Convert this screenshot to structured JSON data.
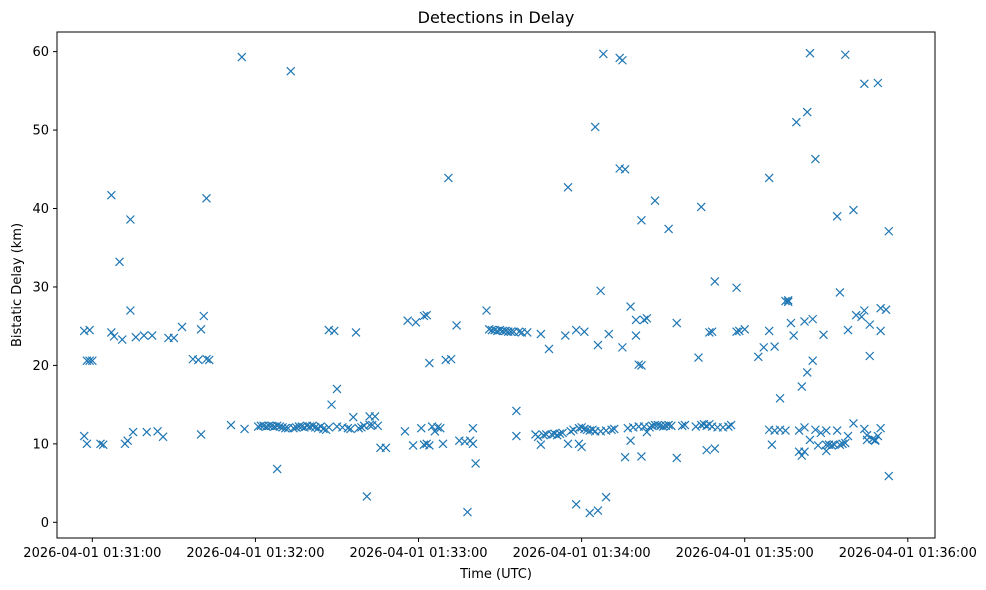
{
  "chart_data": {
    "type": "scatter",
    "title": "Detections in Delay",
    "xlabel": "Time (UTC)",
    "ylabel": "Bistatic Delay (km)",
    "marker": "x",
    "color": "#1f77b4",
    "grid": false,
    "xlim": [
      "2026-04-01 01:30:47",
      "2026-04-01 01:36:10"
    ],
    "ylim": [
      -2,
      62.5
    ],
    "x_ticks": [
      "2026-04-01 01:31:00",
      "2026-04-01 01:32:00",
      "2026-04-01 01:33:00",
      "2026-04-01 01:34:00",
      "2026-04-01 01:35:00",
      "2026-04-01 01:36:00"
    ],
    "y_ticks": [
      "0",
      "10",
      "20",
      "30",
      "40",
      "50",
      "60"
    ],
    "points": [
      [
        "01:30:57",
        24.4
      ],
      [
        "01:30:57",
        11.0
      ],
      [
        "01:30:58",
        20.6
      ],
      [
        "01:30:58",
        10.0
      ],
      [
        "01:30:59",
        24.5
      ],
      [
        "01:30:59",
        20.6
      ],
      [
        "01:31:00",
        20.6
      ],
      [
        "01:31:03",
        10.0
      ],
      [
        "01:31:04",
        9.9
      ],
      [
        "01:31:07",
        41.7
      ],
      [
        "01:31:07",
        24.2
      ],
      [
        "01:31:08",
        23.7
      ],
      [
        "01:31:10",
        33.2
      ],
      [
        "01:31:11",
        23.3
      ],
      [
        "01:31:12",
        10.0
      ],
      [
        "01:31:13",
        10.4
      ],
      [
        "01:31:14",
        27.0
      ],
      [
        "01:31:14",
        38.6
      ],
      [
        "01:31:15",
        11.5
      ],
      [
        "01:31:16",
        23.6
      ],
      [
        "01:31:19",
        23.8
      ],
      [
        "01:31:20",
        11.5
      ],
      [
        "01:31:22",
        23.8
      ],
      [
        "01:31:24",
        11.6
      ],
      [
        "01:31:26",
        10.9
      ],
      [
        "01:31:28",
        23.5
      ],
      [
        "01:31:30",
        23.5
      ],
      [
        "01:31:33",
        24.9
      ],
      [
        "01:31:37",
        20.8
      ],
      [
        "01:31:39",
        20.7
      ],
      [
        "01:31:40",
        24.6
      ],
      [
        "01:31:40",
        11.2
      ],
      [
        "01:31:41",
        26.3
      ],
      [
        "01:31:42",
        20.8
      ],
      [
        "01:31:42",
        41.3
      ],
      [
        "01:31:43",
        20.7
      ],
      [
        "01:31:51",
        12.4
      ],
      [
        "01:31:55",
        59.3
      ],
      [
        "01:31:56",
        11.9
      ],
      [
        "01:32:01",
        12.2
      ],
      [
        "01:32:02",
        12.3
      ],
      [
        "01:32:03",
        12.3
      ],
      [
        "01:32:04",
        12.2
      ],
      [
        "01:32:05",
        12.3
      ],
      [
        "01:32:06",
        12.3
      ],
      [
        "01:32:07",
        12.2
      ],
      [
        "01:32:08",
        12.3
      ],
      [
        "01:32:08",
        6.8
      ],
      [
        "01:32:09",
        12.2
      ],
      [
        "01:32:10",
        12.1
      ],
      [
        "01:32:11",
        12.0
      ],
      [
        "01:32:12",
        12.0
      ],
      [
        "01:32:13",
        57.5
      ],
      [
        "01:32:14",
        12.0
      ],
      [
        "01:32:15",
        12.1
      ],
      [
        "01:32:16",
        12.2
      ],
      [
        "01:32:17",
        12.2
      ],
      [
        "01:32:18",
        12.1
      ],
      [
        "01:32:19",
        12.3
      ],
      [
        "01:32:20",
        12.2
      ],
      [
        "01:32:21",
        12.3
      ],
      [
        "01:32:22",
        12.1
      ],
      [
        "01:32:23",
        12.0
      ],
      [
        "01:32:24",
        12.2
      ],
      [
        "01:32:25",
        11.9
      ],
      [
        "01:32:26",
        11.8
      ],
      [
        "01:32:27",
        24.5
      ],
      [
        "01:32:27",
        12.1
      ],
      [
        "01:32:28",
        15.0
      ],
      [
        "01:32:29",
        24.4
      ],
      [
        "01:32:30",
        17.0
      ],
      [
        "01:32:30",
        12.2
      ],
      [
        "01:32:32",
        12.1
      ],
      [
        "01:32:34",
        12.0
      ],
      [
        "01:32:35",
        11.9
      ],
      [
        "01:32:36",
        13.4
      ],
      [
        "01:32:37",
        24.2
      ],
      [
        "01:32:38",
        12.0
      ],
      [
        "01:32:39",
        12.1
      ],
      [
        "01:32:40",
        12.3
      ],
      [
        "01:32:41",
        3.3
      ],
      [
        "01:32:42",
        13.5
      ],
      [
        "01:32:42",
        12.4
      ],
      [
        "01:32:43",
        12.4
      ],
      [
        "01:32:44",
        13.5
      ],
      [
        "01:32:45",
        12.3
      ],
      [
        "01:32:46",
        9.5
      ],
      [
        "01:32:48",
        9.5
      ],
      [
        "01:32:55",
        11.6
      ],
      [
        "01:32:56",
        25.7
      ],
      [
        "01:32:58",
        9.8
      ],
      [
        "01:32:59",
        25.5
      ],
      [
        "01:33:01",
        12.0
      ],
      [
        "01:33:02",
        26.3
      ],
      [
        "01:33:02",
        9.9
      ],
      [
        "01:33:03",
        26.4
      ],
      [
        "01:33:03",
        10.0
      ],
      [
        "01:33:04",
        20.3
      ],
      [
        "01:33:04",
        9.8
      ],
      [
        "01:33:05",
        12.2
      ],
      [
        "01:33:06",
        11.6
      ],
      [
        "01:33:07",
        12.1
      ],
      [
        "01:33:08",
        12.0
      ],
      [
        "01:33:09",
        10.0
      ],
      [
        "01:33:10",
        20.7
      ],
      [
        "01:33:11",
        43.9
      ],
      [
        "01:33:12",
        20.8
      ],
      [
        "01:33:14",
        25.1
      ],
      [
        "01:33:15",
        10.4
      ],
      [
        "01:33:17",
        10.3
      ],
      [
        "01:33:18",
        1.3
      ],
      [
        "01:33:19",
        10.4
      ],
      [
        "01:33:20",
        12.0
      ],
      [
        "01:33:20",
        10.0
      ],
      [
        "01:33:21",
        7.5
      ],
      [
        "01:33:25",
        27.0
      ],
      [
        "01:33:26",
        24.6
      ],
      [
        "01:33:27",
        24.5
      ],
      [
        "01:33:28",
        24.5
      ],
      [
        "01:33:29",
        24.4
      ],
      [
        "01:33:30",
        24.5
      ],
      [
        "01:33:31",
        24.4
      ],
      [
        "01:33:32",
        24.4
      ],
      [
        "01:33:33",
        24.3
      ],
      [
        "01:33:34",
        24.3
      ],
      [
        "01:33:35",
        24.3
      ],
      [
        "01:33:36",
        11.0
      ],
      [
        "01:33:36",
        14.2
      ],
      [
        "01:33:37",
        24.3
      ],
      [
        "01:33:38",
        24.2
      ],
      [
        "01:33:40",
        24.2
      ],
      [
        "01:33:43",
        11.2
      ],
      [
        "01:33:44",
        10.9
      ],
      [
        "01:33:45",
        24.0
      ],
      [
        "01:33:45",
        9.9
      ],
      [
        "01:33:46",
        11.1
      ],
      [
        "01:33:47",
        11.2
      ],
      [
        "01:33:48",
        22.1
      ],
      [
        "01:33:49",
        11.2
      ],
      [
        "01:33:50",
        11.3
      ],
      [
        "01:33:51",
        11.1
      ],
      [
        "01:33:52",
        11.3
      ],
      [
        "01:33:53",
        11.4
      ],
      [
        "01:33:54",
        23.8
      ],
      [
        "01:33:55",
        42.7
      ],
      [
        "01:33:55",
        10.0
      ],
      [
        "01:33:56",
        11.6
      ],
      [
        "01:33:57",
        11.8
      ],
      [
        "01:33:58",
        24.5
      ],
      [
        "01:33:58",
        2.3
      ],
      [
        "01:33:59",
        12.0
      ],
      [
        "01:33:59",
        10.0
      ],
      [
        "01:34:00",
        12.1
      ],
      [
        "01:34:00",
        9.6
      ],
      [
        "01:34:01",
        24.3
      ],
      [
        "01:34:01",
        11.9
      ],
      [
        "01:34:02",
        11.8
      ],
      [
        "01:34:03",
        11.7
      ],
      [
        "01:34:03",
        1.2
      ],
      [
        "01:34:04",
        11.8
      ],
      [
        "01:34:05",
        11.6
      ],
      [
        "01:34:05",
        50.4
      ],
      [
        "01:34:06",
        1.5
      ],
      [
        "01:34:06",
        22.6
      ],
      [
        "01:34:07",
        29.5
      ],
      [
        "01:34:07",
        11.6
      ],
      [
        "01:34:08",
        59.7
      ],
      [
        "01:34:09",
        11.7
      ],
      [
        "01:34:09",
        3.2
      ],
      [
        "01:34:10",
        24.0
      ],
      [
        "01:34:11",
        11.8
      ],
      [
        "01:34:12",
        11.9
      ],
      [
        "01:34:14",
        59.2
      ],
      [
        "01:34:14",
        45.1
      ],
      [
        "01:34:15",
        22.3
      ],
      [
        "01:34:15",
        58.9
      ],
      [
        "01:34:16",
        8.3
      ],
      [
        "01:34:16",
        45.0
      ],
      [
        "01:34:17",
        12.0
      ],
      [
        "01:34:18",
        27.5
      ],
      [
        "01:34:18",
        10.4
      ],
      [
        "01:34:19",
        12.1
      ],
      [
        "01:34:20",
        23.8
      ],
      [
        "01:34:20",
        25.8
      ],
      [
        "01:34:21",
        12.2
      ],
      [
        "01:34:21",
        20.1
      ],
      [
        "01:34:22",
        20.0
      ],
      [
        "01:34:22",
        8.4
      ],
      [
        "01:34:22",
        38.5
      ],
      [
        "01:34:23",
        25.8
      ],
      [
        "01:34:23",
        12.2
      ],
      [
        "01:34:24",
        26.0
      ],
      [
        "01:34:24",
        11.5
      ],
      [
        "01:34:25",
        12.1
      ],
      [
        "01:34:26",
        12.3
      ],
      [
        "01:34:27",
        41.0
      ],
      [
        "01:34:27",
        12.4
      ],
      [
        "01:34:28",
        12.4
      ],
      [
        "01:34:29",
        12.3
      ],
      [
        "01:34:30",
        12.2
      ],
      [
        "01:34:31",
        12.3
      ],
      [
        "01:34:32",
        37.4
      ],
      [
        "01:34:32",
        12.4
      ],
      [
        "01:34:33",
        12.3
      ],
      [
        "01:34:35",
        25.4
      ],
      [
        "01:34:35",
        8.2
      ],
      [
        "01:34:37",
        12.3
      ],
      [
        "01:34:38",
        12.4
      ],
      [
        "01:34:42",
        12.2
      ],
      [
        "01:34:43",
        21.0
      ],
      [
        "01:34:44",
        40.2
      ],
      [
        "01:34:44",
        12.4
      ],
      [
        "01:34:45",
        12.5
      ],
      [
        "01:34:46",
        12.3
      ],
      [
        "01:34:46",
        9.2
      ],
      [
        "01:34:47",
        24.2
      ],
      [
        "01:34:47",
        12.5
      ],
      [
        "01:34:48",
        24.3
      ],
      [
        "01:34:48",
        12.2
      ],
      [
        "01:34:49",
        30.7
      ],
      [
        "01:34:49",
        9.4
      ],
      [
        "01:34:50",
        12.1
      ],
      [
        "01:34:52",
        12.1
      ],
      [
        "01:34:54",
        12.2
      ],
      [
        "01:34:55",
        12.4
      ],
      [
        "01:34:57",
        24.3
      ],
      [
        "01:34:57",
        29.9
      ],
      [
        "01:34:58",
        24.4
      ],
      [
        "01:35:00",
        24.6
      ],
      [
        "01:35:05",
        21.1
      ],
      [
        "01:35:07",
        22.3
      ],
      [
        "01:35:09",
        43.9
      ],
      [
        "01:35:09",
        24.4
      ],
      [
        "01:35:09",
        11.8
      ],
      [
        "01:35:10",
        9.9
      ],
      [
        "01:35:11",
        22.4
      ],
      [
        "01:35:11",
        11.7
      ],
      [
        "01:35:13",
        15.8
      ],
      [
        "01:35:13",
        11.8
      ],
      [
        "01:35:15",
        28.2
      ],
      [
        "01:35:15",
        11.7
      ],
      [
        "01:35:16",
        28.3
      ],
      [
        "01:35:16",
        28.1
      ],
      [
        "01:35:17",
        25.4
      ],
      [
        "01:35:18",
        23.8
      ],
      [
        "01:35:19",
        51.0
      ],
      [
        "01:35:20",
        9.0
      ],
      [
        "01:35:20",
        11.7
      ],
      [
        "01:35:21",
        8.5
      ],
      [
        "01:35:21",
        17.3
      ],
      [
        "01:35:22",
        25.6
      ],
      [
        "01:35:22",
        12.1
      ],
      [
        "01:35:22",
        9.0
      ],
      [
        "01:35:23",
        19.1
      ],
      [
        "01:35:23",
        52.3
      ],
      [
        "01:35:24",
        10.5
      ],
      [
        "01:35:24",
        59.8
      ],
      [
        "01:35:25",
        20.6
      ],
      [
        "01:35:25",
        25.9
      ],
      [
        "01:35:26",
        11.8
      ],
      [
        "01:35:26",
        46.3
      ],
      [
        "01:35:27",
        9.8
      ],
      [
        "01:35:28",
        11.4
      ],
      [
        "01:35:29",
        23.9
      ],
      [
        "01:35:30",
        9.9
      ],
      [
        "01:35:30",
        11.7
      ],
      [
        "01:35:30",
        9.1
      ],
      [
        "01:35:31",
        9.9
      ],
      [
        "01:35:32",
        9.8
      ],
      [
        "01:35:33",
        9.9
      ],
      [
        "01:35:34",
        39.0
      ],
      [
        "01:35:34",
        11.7
      ],
      [
        "01:35:35",
        29.3
      ],
      [
        "01:35:35",
        9.9
      ],
      [
        "01:35:36",
        10.0
      ],
      [
        "01:35:37",
        59.6
      ],
      [
        "01:35:37",
        10.1
      ],
      [
        "01:35:38",
        24.5
      ],
      [
        "01:35:38",
        11.0
      ],
      [
        "01:35:40",
        39.8
      ],
      [
        "01:35:40",
        12.6
      ],
      [
        "01:35:41",
        26.4
      ],
      [
        "01:35:43",
        26.2
      ],
      [
        "01:35:44",
        11.9
      ],
      [
        "01:35:44",
        27.0
      ],
      [
        "01:35:44",
        55.9
      ],
      [
        "01:35:45",
        11.1
      ],
      [
        "01:35:45",
        10.5
      ],
      [
        "01:35:46",
        25.2
      ],
      [
        "01:35:46",
        21.2
      ],
      [
        "01:35:47",
        10.6
      ],
      [
        "01:35:48",
        10.4
      ],
      [
        "01:35:48",
        10.5
      ],
      [
        "01:35:49",
        56.0
      ],
      [
        "01:35:49",
        11.0
      ],
      [
        "01:35:50",
        12.0
      ],
      [
        "01:35:50",
        27.3
      ],
      [
        "01:35:50",
        24.4
      ],
      [
        "01:35:52",
        27.1
      ],
      [
        "01:35:53",
        5.9
      ],
      [
        "01:35:53",
        37.1
      ]
    ]
  }
}
